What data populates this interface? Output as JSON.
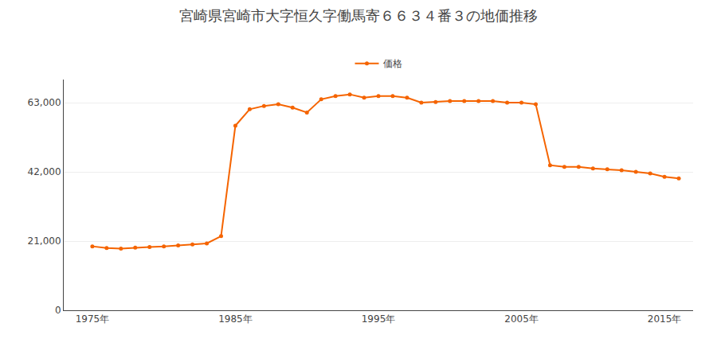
{
  "chart_data": {
    "type": "line",
    "title": "宮崎県宮崎市大字恒久字働馬寄６６３４番３の地価推移",
    "x": [
      1975,
      1976,
      1977,
      1978,
      1979,
      1980,
      1981,
      1982,
      1983,
      1984,
      1985,
      1986,
      1987,
      1988,
      1989,
      1990,
      1991,
      1992,
      1993,
      1994,
      1995,
      1996,
      1997,
      1998,
      1999,
      2000,
      2001,
      2002,
      2003,
      2004,
      2005,
      2006,
      2007,
      2008,
      2009,
      2010,
      2011,
      2012,
      2013,
      2014,
      2015,
      2016
    ],
    "series": [
      {
        "name": "価格",
        "color": "#f56400",
        "marker": "circle",
        "values": [
          19400,
          18900,
          18700,
          19000,
          19200,
          19400,
          19700,
          20000,
          20300,
          22500,
          56000,
          61000,
          62000,
          62500,
          61500,
          60000,
          64000,
          65000,
          65500,
          64500,
          65000,
          65000,
          64500,
          63000,
          63200,
          63500,
          63500,
          63500,
          63500,
          63000,
          63000,
          62500,
          44000,
          43500,
          43500,
          43000,
          42800,
          42500,
          42000,
          41500,
          40500,
          40000
        ]
      }
    ],
    "xlim": [
      1973,
      2017
    ],
    "xticks": [
      {
        "value": 1975,
        "label": "1975年"
      },
      {
        "value": 1985,
        "label": "1985年"
      },
      {
        "value": 1995,
        "label": "1995年"
      },
      {
        "value": 2005,
        "label": "2005年"
      },
      {
        "value": 2015,
        "label": "2015年"
      }
    ],
    "ylim": [
      0,
      70000
    ],
    "yticks": [
      0,
      {
        "value": 21000,
        "label": "21,000"
      },
      {
        "value": 42000,
        "label": "42,000"
      },
      {
        "value": 63000,
        "label": "63,000"
      }
    ],
    "grid": true,
    "legend": "top"
  }
}
